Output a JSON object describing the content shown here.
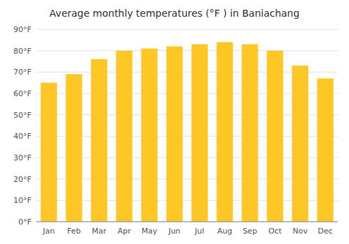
{
  "chart_data": {
    "type": "bar",
    "title": "Average monthly temperatures (°F ) in Baniachang",
    "categories": [
      "Jan",
      "Feb",
      "Mar",
      "Apr",
      "May",
      "Jun",
      "Jul",
      "Aug",
      "Sep",
      "Oct",
      "Nov",
      "Dec"
    ],
    "values": [
      65,
      69,
      76,
      80,
      81,
      82,
      83,
      84,
      83,
      80,
      73,
      67
    ],
    "color": "#FFC726",
    "ylim": [
      0,
      90
    ],
    "yticks": [
      {
        "value": 0,
        "label": "0°F"
      },
      {
        "value": 10,
        "label": "10°F"
      },
      {
        "value": 20,
        "label": "20°F"
      },
      {
        "value": 30,
        "label": "30°F"
      },
      {
        "value": 40,
        "label": "40°F"
      },
      {
        "value": 50,
        "label": "50°F"
      },
      {
        "value": 60,
        "label": "60°F"
      },
      {
        "value": 70,
        "label": "70°F"
      },
      {
        "value": 80,
        "label": "80°F"
      },
      {
        "value": 90,
        "label": "90°F"
      }
    ],
    "grid": true
  }
}
